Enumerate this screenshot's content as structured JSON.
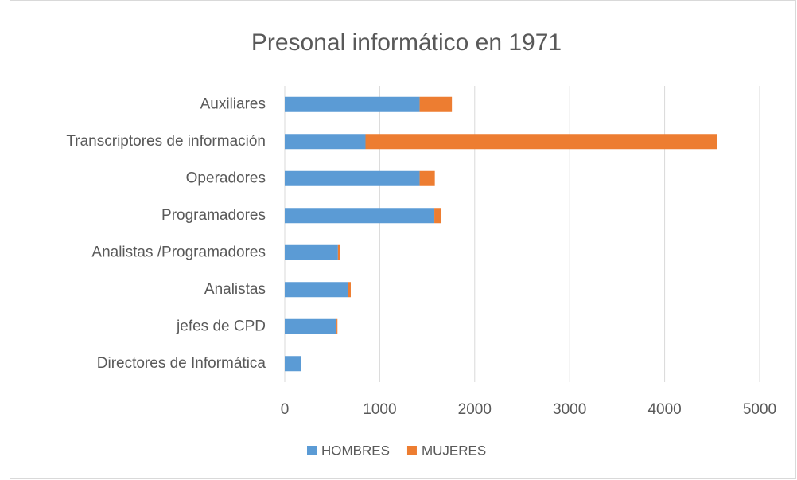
{
  "chart_data": {
    "type": "bar",
    "orientation": "horizontal",
    "stacked": true,
    "title": "Presonal informático en 1971",
    "categories": [
      "Auxiliares",
      "Transcriptores de información",
      "Operadores",
      "Programadores",
      "Analistas /Programadores",
      "Analistas",
      "jefes de CPD",
      "Directores de Informática"
    ],
    "series": [
      {
        "name": "HOMBRES",
        "color": "#5b9bd5",
        "values": [
          1420,
          850,
          1420,
          1575,
          560,
          670,
          545,
          175
        ]
      },
      {
        "name": "MUJERES",
        "color": "#ed7d31",
        "values": [
          340,
          3700,
          160,
          75,
          25,
          25,
          10,
          0
        ]
      }
    ],
    "xlim": [
      0,
      5000
    ],
    "xticks": [
      0,
      1000,
      2000,
      3000,
      4000,
      5000
    ],
    "grid": true,
    "legend": "bottom"
  }
}
